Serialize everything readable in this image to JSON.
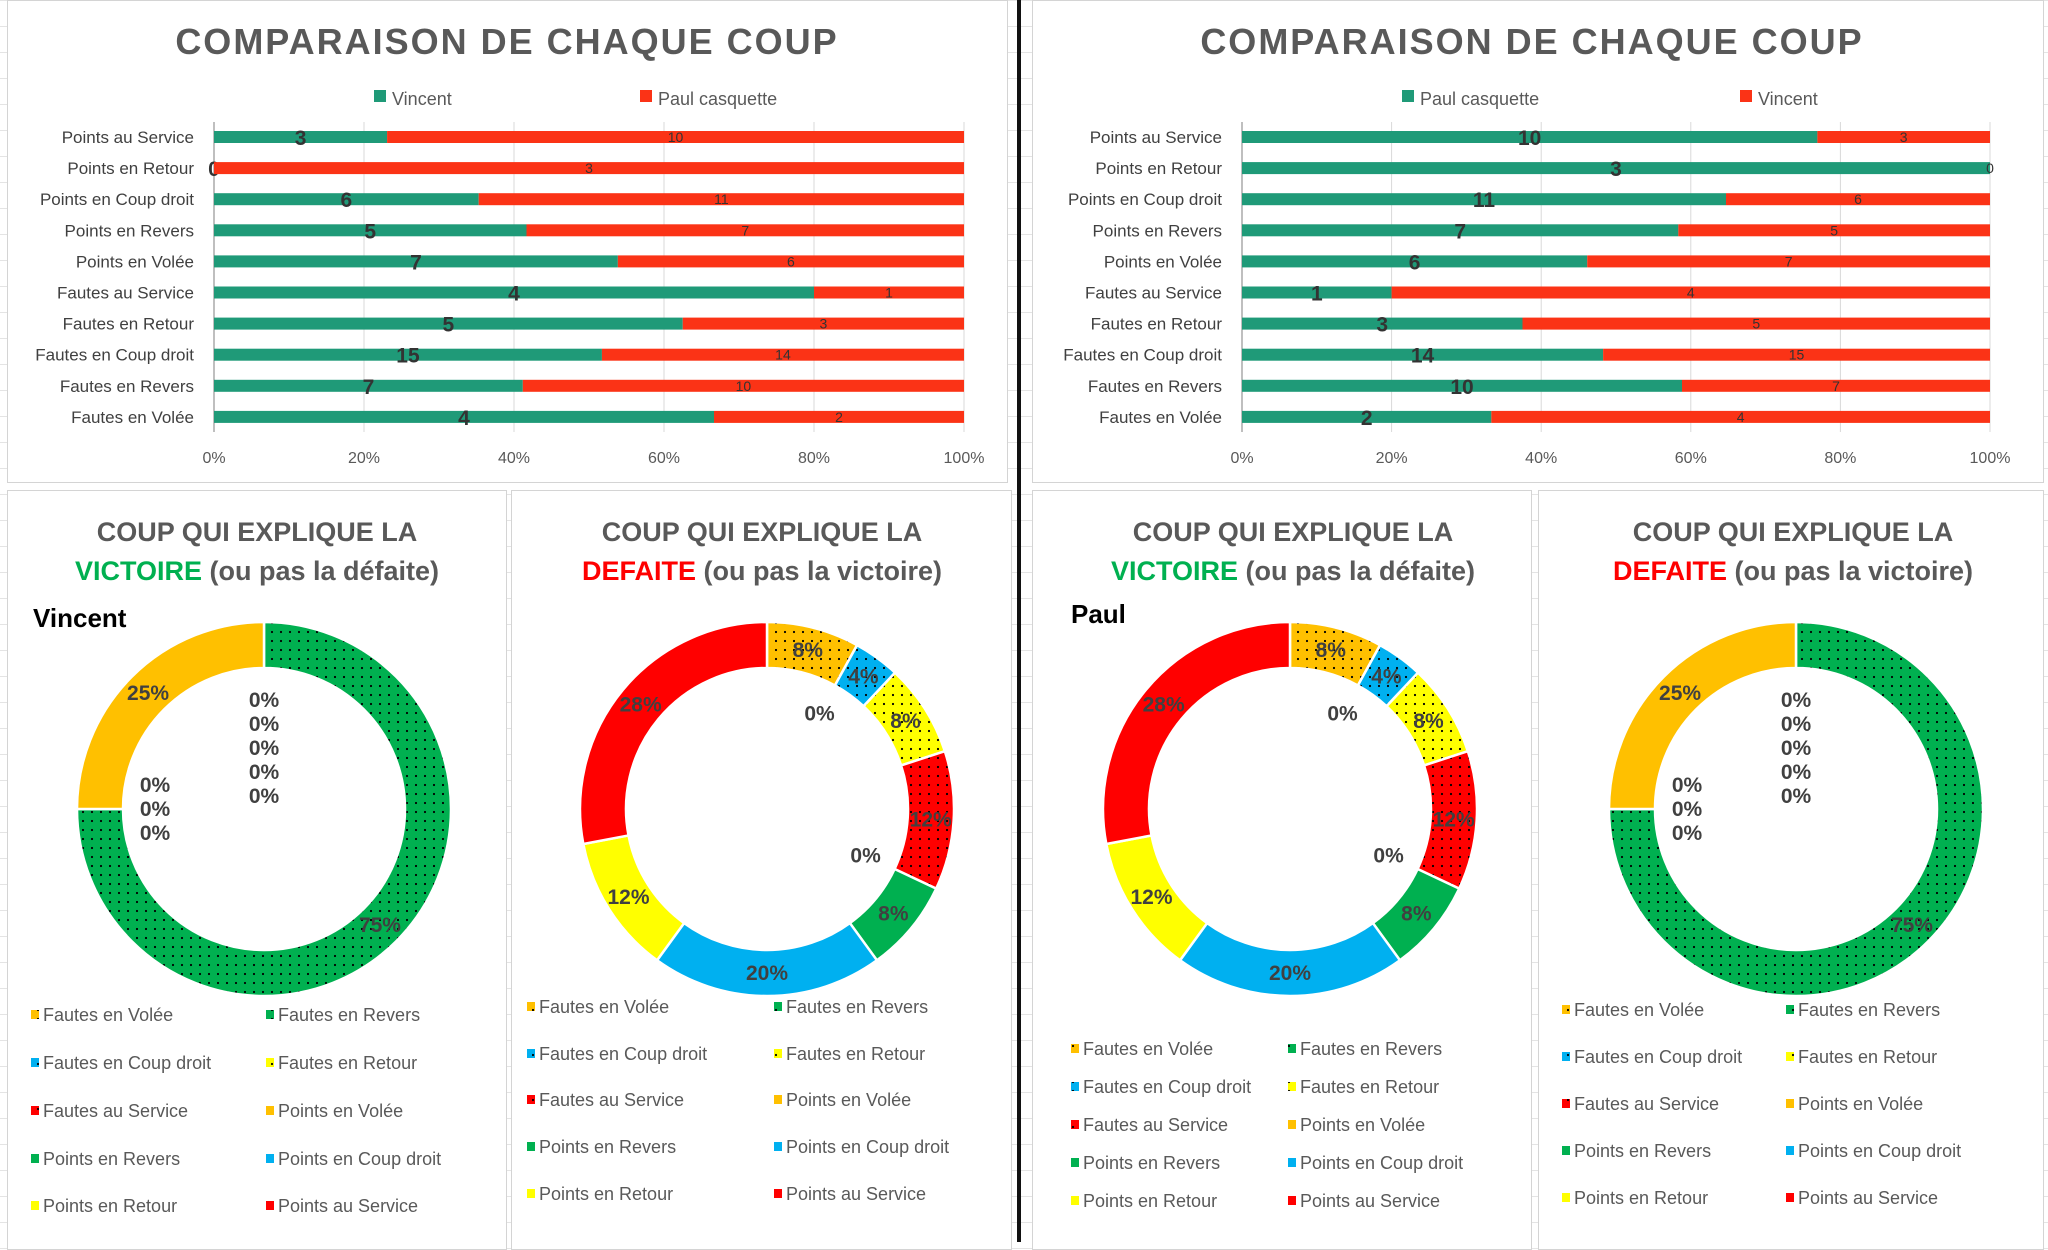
{
  "colors": {
    "teal": "#1f9a78",
    "orange_red": "#fb3316",
    "victory_green": "#00b050",
    "defeat_red": "#ff0000"
  },
  "bar_charts_categories": [
    "Points au Service",
    "Points en Retour",
    "Points en Coup droit",
    "Points en Revers",
    "Points en Volée",
    "Fautes au Service",
    "Fautes en Retour",
    "Fautes en Coup droit",
    "Fautes en Revers",
    "Fautes en Volée"
  ],
  "chart_data": [
    {
      "type": "bar",
      "orientation": "horizontal",
      "stacked": "100%",
      "title": "COMPARAISON DE CHAQUE COUP",
      "legend_position": "top",
      "categories": [
        "Points au Service",
        "Points en Retour",
        "Points en Coup droit",
        "Points en Revers",
        "Points en Volée",
        "Fautes au Service",
        "Fautes en Retour",
        "Fautes en Coup droit",
        "Fautes en Revers",
        "Fautes en Volée"
      ],
      "series": [
        {
          "name": "Vincent",
          "color": "#1f9a78",
          "values": [
            3,
            0,
            6,
            5,
            7,
            4,
            5,
            15,
            7,
            4
          ]
        },
        {
          "name": "Paul casquette",
          "color": "#fb3316",
          "values": [
            10,
            3,
            11,
            7,
            6,
            1,
            3,
            14,
            10,
            2
          ]
        }
      ],
      "xticks": [
        "0%",
        "20%",
        "40%",
        "60%",
        "80%",
        "100%"
      ],
      "xlim": [
        0,
        100
      ],
      "grid": true
    },
    {
      "type": "bar",
      "orientation": "horizontal",
      "stacked": "100%",
      "title": "COMPARAISON DE CHAQUE COUP",
      "legend_position": "top",
      "categories": [
        "Points au Service",
        "Points en Retour",
        "Points en Coup droit",
        "Points en Revers",
        "Points en Volée",
        "Fautes au Service",
        "Fautes en Retour",
        "Fautes en Coup droit",
        "Fautes en Revers",
        "Fautes en Volée"
      ],
      "series": [
        {
          "name": "Paul casquette",
          "color": "#1f9a78",
          "values": [
            10,
            3,
            11,
            7,
            6,
            1,
            3,
            14,
            10,
            2
          ]
        },
        {
          "name": "Vincent",
          "color": "#fb3316",
          "values": [
            3,
            0,
            6,
            5,
            7,
            4,
            5,
            15,
            7,
            4
          ]
        }
      ],
      "xticks": [
        "0%",
        "20%",
        "40%",
        "60%",
        "80%",
        "100%"
      ],
      "xlim": [
        0,
        100
      ],
      "grid": true
    },
    {
      "type": "pie",
      "donut": true,
      "title_line1": "COUP QUI EXPLIQUE LA",
      "title_highlight": "VICTOIRE",
      "title_rest": " (ou pas la défaite)",
      "highlight_color": "#00b050",
      "player": "Vincent",
      "legend_position": "bottom",
      "labels": [
        "Fautes en Volée",
        "Fautes en Revers",
        "Fautes en Coup droit",
        "Fautes en Retour",
        "Fautes au Service",
        "Points en Volée",
        "Points en Revers",
        "Points en Coup droit",
        "Points en Retour",
        "Points au Service"
      ],
      "values": [
        0,
        75,
        0,
        0,
        0,
        25,
        0,
        0,
        0,
        0
      ],
      "shown_labels": [
        "0%",
        "75%",
        "0%",
        "25%"
      ]
    },
    {
      "type": "pie",
      "donut": true,
      "title_line1": "COUP QUI EXPLIQUE LA",
      "title_highlight": "DEFAITE",
      "title_rest": " (ou pas la victoire)",
      "highlight_color": "#ff0000",
      "player": "",
      "legend_position": "bottom",
      "labels": [
        "Fautes en Volée",
        "Fautes en Revers",
        "Fautes en Coup droit",
        "Fautes en Retour",
        "Fautes au Service",
        "Points en Volée",
        "Points en Revers",
        "Points en Coup droit",
        "Points en Retour",
        "Points au Service"
      ],
      "values": [
        8,
        0,
        4,
        8,
        12,
        0,
        8,
        20,
        12,
        28
      ]
    },
    {
      "type": "pie",
      "donut": true,
      "title_line1": "COUP QUI EXPLIQUE LA",
      "title_highlight": "VICTOIRE",
      "title_rest": " (ou pas la défaite)",
      "highlight_color": "#00b050",
      "player": "Paul",
      "legend_position": "bottom",
      "labels": [
        "Fautes en Volée",
        "Fautes en Revers",
        "Fautes en Coup droit",
        "Fautes en Retour",
        "Fautes au Service",
        "Points en Volée",
        "Points en Revers",
        "Points en Coup droit",
        "Points en Retour",
        "Points au Service"
      ],
      "values": [
        8,
        0,
        4,
        8,
        12,
        0,
        8,
        20,
        12,
        28
      ]
    },
    {
      "type": "pie",
      "donut": true,
      "title_line1": "COUP QUI EXPLIQUE LA",
      "title_highlight": "DEFAITE",
      "title_rest": " (ou pas la victoire)",
      "highlight_color": "#ff0000",
      "player": "",
      "legend_position": "bottom",
      "labels": [
        "Fautes en Volée",
        "Fautes en Revers",
        "Fautes en Coup droit",
        "Fautes en Retour",
        "Fautes au Service",
        "Points en Volée",
        "Points en Revers",
        "Points en Coup droit",
        "Points en Retour",
        "Points au Service"
      ],
      "values": [
        0,
        75,
        0,
        0,
        0,
        25,
        0,
        0,
        0,
        0
      ]
    }
  ],
  "donut_slice_colors": [
    "#ffc000",
    "#00b050",
    "#00b0f0",
    "#ffff00",
    "#ff0000",
    "#ffc000",
    "#00b050",
    "#00b0f0",
    "#ffff00",
    "#ff0000"
  ],
  "donut_slice_dotted": [
    true,
    true,
    true,
    true,
    true,
    false,
    false,
    false,
    false,
    false
  ]
}
